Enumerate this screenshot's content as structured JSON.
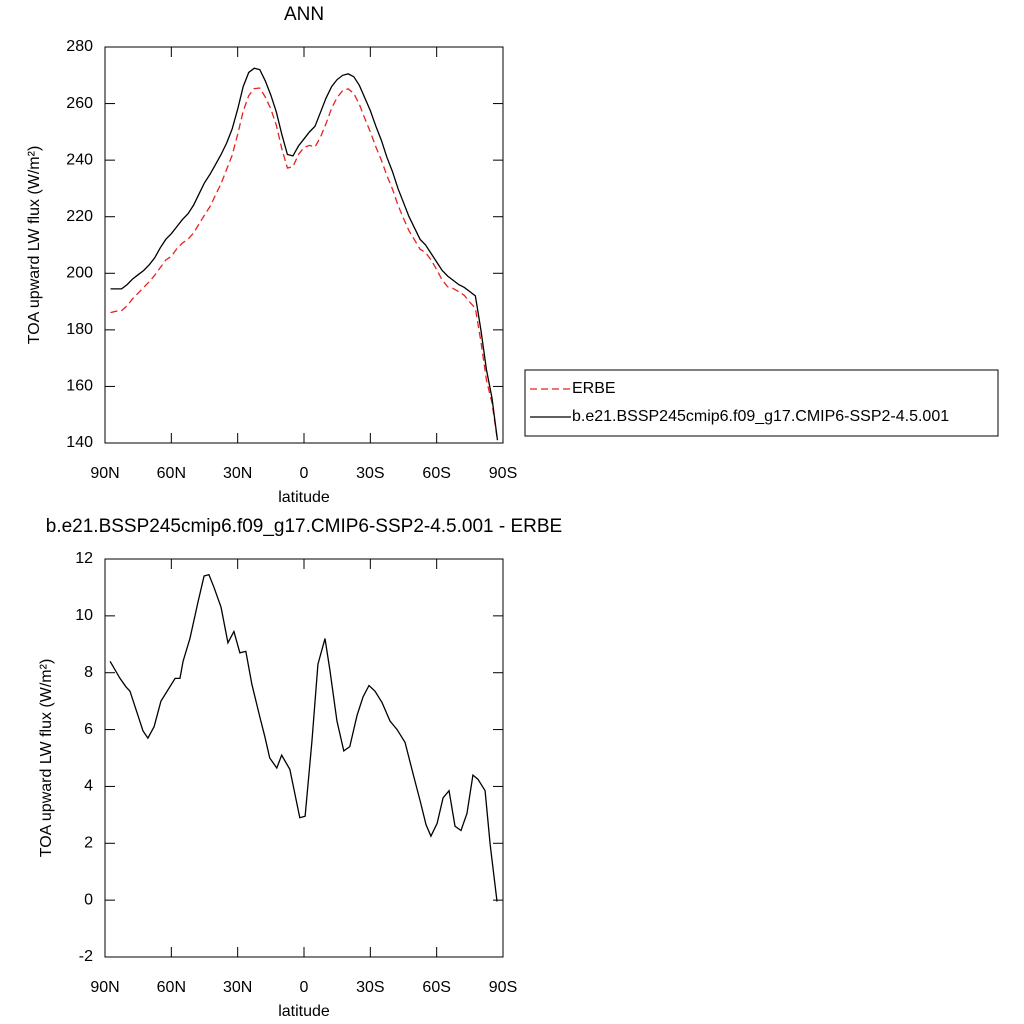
{
  "chart_data": [
    {
      "type": "line",
      "title": "ANN",
      "x_label": "latitude",
      "y_label": "TOA upward LW flux (W/m²)",
      "x": [
        87.5,
        85,
        82.5,
        80,
        77.5,
        75,
        72.5,
        70,
        67.5,
        65,
        62.5,
        60,
        57.5,
        55,
        52.5,
        50,
        47.5,
        45,
        42.5,
        40,
        37.5,
        35,
        32.5,
        30,
        27.5,
        25,
        22.5,
        20,
        17.5,
        15,
        12.5,
        10,
        7.5,
        5,
        2.5,
        0,
        -2.5,
        -5,
        -7.5,
        -10,
        -12.5,
        -15,
        -17.5,
        -20,
        -22.5,
        -25,
        -27.5,
        -30,
        -32.5,
        -35,
        -37.5,
        -40,
        -42.5,
        -45,
        -47.5,
        -50,
        -52.5,
        -55,
        -57.5,
        -60,
        -62.5,
        -65,
        -67.5,
        -70,
        -72.5,
        -75,
        -77.5,
        -80,
        -82.5,
        -85,
        -87.5
      ],
      "series": [
        {
          "name": "ERBE",
          "color": "#e8211d",
          "dash": "dashed",
          "values": [
            186.1,
            186.6,
            186.8,
            188.5,
            191,
            193,
            195,
            197,
            199.3,
            202,
            204.7,
            206,
            208.7,
            210.7,
            212,
            214.2,
            217.4,
            220.6,
            223.6,
            227.7,
            231.7,
            236.7,
            241.7,
            249.1,
            257.3,
            262.8,
            265.3,
            265.5,
            262.3,
            258.1,
            252.3,
            243.9,
            237.2,
            237.7,
            242,
            244.5,
            245.2,
            244.7,
            248.2,
            253,
            258.4,
            262.2,
            264.6,
            265.2,
            263.6,
            259.8,
            254.7,
            250,
            244.7,
            240,
            234.5,
            229.8,
            224.1,
            219.4,
            215,
            211.8,
            208.5,
            207.3,
            204.7,
            201.3,
            197.6,
            195.2,
            194.6,
            193.5,
            192.2,
            189.8,
            187.6,
            175.9,
            162.3,
            154.3,
            140.9
          ]
        },
        {
          "name": "b.e21.BSSP245cmip6.f09_g17.CMIP6-SSP2-4.5.001",
          "color": "#000000",
          "dash": "solid",
          "values": [
            194.5,
            194.5,
            194.5,
            196,
            198,
            199.5,
            201,
            203,
            205.5,
            209,
            212,
            214,
            216.5,
            219,
            221,
            224,
            228,
            232,
            235,
            238.5,
            242,
            246,
            251,
            258,
            266,
            271,
            272.5,
            272,
            268,
            263,
            257,
            249,
            242,
            241.5,
            245,
            247.5,
            250,
            252,
            257,
            262,
            266,
            268.5,
            270,
            270.5,
            269.5,
            266.5,
            262,
            257.5,
            252,
            247,
            241,
            236,
            230,
            225,
            220,
            216,
            212,
            210,
            207,
            204,
            201,
            199,
            197.5,
            196,
            195,
            193.5,
            192,
            180,
            166,
            156,
            141
          ]
        }
      ],
      "xlim": [
        90,
        -90
      ],
      "xticks": [
        {
          "value": 90,
          "label": "90N"
        },
        {
          "value": 60,
          "label": "60N"
        },
        {
          "value": 30,
          "label": "30N"
        },
        0,
        {
          "value": -30,
          "label": "30S"
        },
        {
          "value": -60,
          "label": "60S"
        },
        {
          "value": -90,
          "label": "90S"
        }
      ],
      "ylim": [
        140,
        280
      ],
      "yticks": [
        140,
        160,
        180,
        200,
        220,
        240,
        260,
        280
      ],
      "legend": "outside-right"
    },
    {
      "type": "line",
      "title": "b.e21.BSSP245cmip6.f09_g17.CMIP6-SSP2-4.5.001 - ERBE",
      "x_label": "latitude",
      "y_label": "TOA upward LW flux (W/m²)",
      "x": [
        87.7,
        83.2,
        80.5,
        78.7,
        72.8,
        70.6,
        67.8,
        64.7,
        58.3,
        56.1,
        54.7,
        51.6,
        47.9,
        45.2,
        43,
        40.7,
        37.5,
        34.4,
        31.7,
        29,
        26.3,
        23.6,
        20,
        17.7,
        15.5,
        12.3,
        10.1,
        6.4,
        1.9,
        -0.5,
        -3.6,
        -6.3,
        -9.5,
        -11.7,
        -14.9,
        -18,
        -20.7,
        -24,
        -26.7,
        -29.4,
        -32.1,
        -35.3,
        -38.9,
        -42.1,
        -45.7,
        -49.3,
        -52.5,
        -55.2,
        -57.4,
        -60.2,
        -62.9,
        -65.6,
        -68.3,
        -71,
        -73.7,
        -76.4,
        -78.7,
        -81.9,
        -84.2,
        -87.3
      ],
      "values": [
        8.4,
        7.8,
        7.5,
        7.35,
        5.95,
        5.7,
        6.1,
        7.0,
        7.8,
        7.8,
        8.4,
        9.2,
        10.5,
        11.4,
        11.45,
        11.0,
        10.3,
        9.05,
        9.45,
        8.7,
        8.75,
        7.6,
        6.45,
        5.75,
        5.0,
        4.65,
        5.1,
        4.6,
        2.9,
        2.95,
        5.6,
        8.3,
        9.2,
        8.1,
        6.3,
        5.25,
        5.4,
        6.5,
        7.15,
        7.55,
        7.35,
        6.95,
        6.3,
        6.0,
        5.55,
        4.45,
        3.5,
        2.65,
        2.25,
        2.7,
        3.6,
        3.85,
        2.6,
        2.45,
        3.05,
        4.4,
        4.25,
        3.85,
        1.95,
        -0.05
      ],
      "color": "#000000",
      "xlim": [
        90,
        -90
      ],
      "xticks": [
        {
          "value": 90,
          "label": "90N"
        },
        {
          "value": 60,
          "label": "60N"
        },
        {
          "value": 30,
          "label": "30N"
        },
        0,
        {
          "value": -30,
          "label": "30S"
        },
        {
          "value": -60,
          "label": "60S"
        },
        {
          "value": -90,
          "label": "90S"
        }
      ],
      "ylim": [
        -2,
        12
      ],
      "yticks": [
        -2,
        0,
        2,
        4,
        6,
        8,
        10,
        12
      ]
    }
  ]
}
